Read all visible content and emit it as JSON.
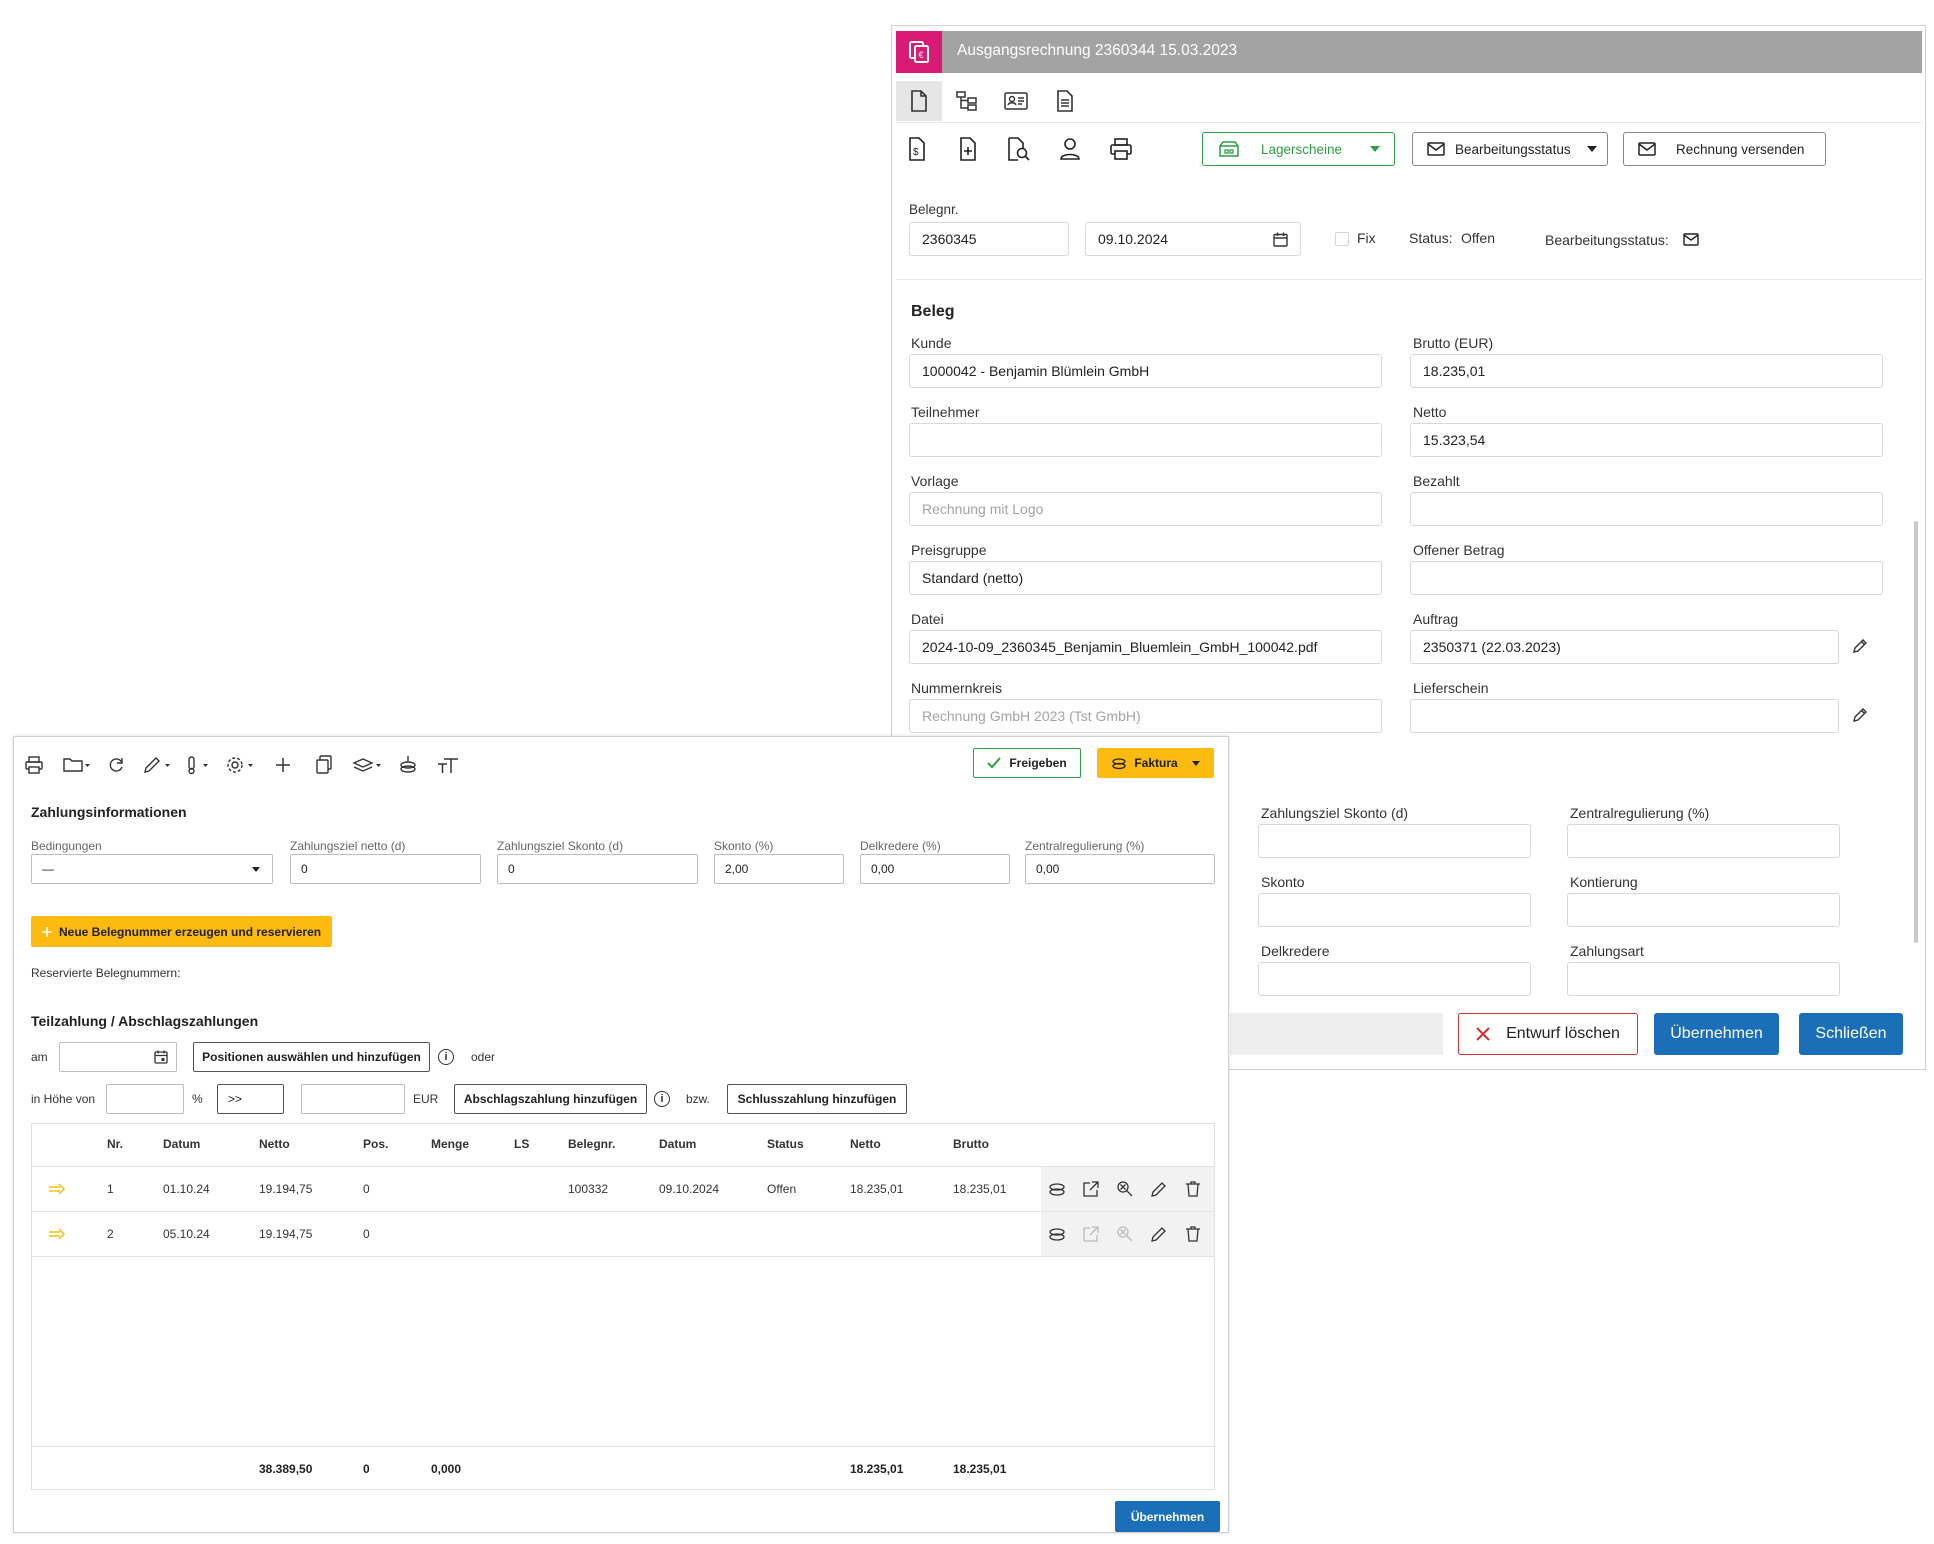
{
  "back_window": {
    "title": "Ausgangsrechnung 2360344 15.03.2023",
    "toolbar": {
      "lagerscheine_label": "Lagerscheine",
      "bearbeitungsstatus_label": "Bearbeitungsstatus",
      "send_label": "Rechnung versenden"
    },
    "header": {
      "belegnr_label": "Belegnr.",
      "belegnr_value": "2360345",
      "date_value": "09.10.2024",
      "fix_label": "Fix",
      "status_label": "Status:",
      "status_value": "Offen",
      "bearbeitungsstatus_label": "Bearbeitungsstatus:"
    },
    "beleg": {
      "section_title": "Beleg",
      "kunde_label": "Kunde",
      "kunde_value": "1000042 - Benjamin Blümlein GmbH",
      "teilnehmer_label": "Teilnehmer",
      "teilnehmer_value": "",
      "vorlage_label": "Vorlage",
      "vorlage_placeholder": "Rechnung mit Logo",
      "preisgruppe_label": "Preisgruppe",
      "preisgruppe_value": "Standard (netto)",
      "datei_label": "Datei",
      "datei_value": "2024-10-09_2360345_Benjamin_Bluemlein_GmbH_100042.pdf",
      "nummernkreis_label": "Nummernkreis",
      "nummernkreis_placeholder": "Rechnung GmbH 2023 (Tst GmbH)",
      "brutto_label": "Brutto (EUR)",
      "brutto_value": "18.235,01",
      "netto_label": "Netto",
      "netto_value": "15.323,54",
      "bezahlt_label": "Bezahlt",
      "bezahlt_value": "",
      "offener_label": "Offener Betrag",
      "offener_value": "",
      "auftrag_label": "Auftrag",
      "auftrag_value": "2350371 (22.03.2023)",
      "lieferschein_label": "Lieferschein",
      "lieferschein_value": ""
    },
    "payment": {
      "zahlungsziel_skonto_label": "Zahlungsziel Skonto (d)",
      "zentralregulierung_label": "Zentralregulierung (%)",
      "skonto_label": "Skonto",
      "kontierung_label": "Kontierung",
      "delkredere_label": "Delkredere",
      "zahlungsart_label": "Zahlungsart"
    },
    "footer": {
      "delete_label": "Entwurf löschen",
      "apply_label": "Übernehmen",
      "close_label": "Schließen"
    }
  },
  "front_window": {
    "freigeben_label": "Freigeben",
    "faktura_label": "Faktura",
    "section_title": "Zahlungsinformationen",
    "fields": {
      "bedingungen_label": "Bedingungen",
      "bedingungen_value": "—",
      "netto_label": "Zahlungsziel netto (d)",
      "netto_value": "0",
      "skonto_d_label": "Zahlungsziel Skonto (d)",
      "skonto_d_value": "0",
      "skonto_pct_label": "Skonto (%)",
      "skonto_pct_value": "2,00",
      "delkredere_label": "Delkredere (%)",
      "delkredere_value": "0,00",
      "zentral_label": "Zentralregulierung (%)",
      "zentral_value": "0,00"
    },
    "new_number_label": "Neue Belegnummer erzeugen und reservieren",
    "reserved_label": "Reservierte Belegnummern:",
    "teilzahlung_title": "Teilzahlung / Abschlagszahlungen",
    "am_label": "am",
    "positions_btn": "Positionen auswählen und hinzufügen",
    "oder_label": "oder",
    "hoehe_label": "in Höhe von",
    "percent_label": "%",
    "arrow_btn": ">>",
    "eur_label": "EUR",
    "abschlag_btn": "Abschlagszahlung hinzufügen",
    "bzw_label": "bzw.",
    "schluss_btn": "Schlusszahlung hinzufügen",
    "table": {
      "headers": [
        "Nr.",
        "Datum",
        "Netto",
        "Pos.",
        "Menge",
        "LS",
        "Belegnr.",
        "Datum",
        "Status",
        "Netto",
        "Brutto"
      ],
      "rows": [
        {
          "nr": "1",
          "datum": "01.10.24",
          "netto": "19.194,75",
          "pos": "0",
          "menge": "",
          "ls": "",
          "belegnr": "100332",
          "datum2": "09.10.2024",
          "status": "Offen",
          "netto2": "18.235,01",
          "brutto": "18.235,01"
        },
        {
          "nr": "2",
          "datum": "05.10.24",
          "netto": "19.194,75",
          "pos": "0",
          "menge": "",
          "ls": "",
          "belegnr": "",
          "datum2": "",
          "status": "",
          "netto2": "",
          "brutto": ""
        }
      ],
      "totals": {
        "netto": "38.389,50",
        "pos": "0",
        "menge": "0,000",
        "netto2": "18.235,01",
        "brutto": "18.235,01"
      }
    },
    "apply_label": "Übernehmen"
  },
  "colors": {
    "brand_magenta": "#d81b75",
    "titlebar_gray": "#a3a3a3",
    "primary_blue": "#1a6fb8",
    "warning_yellow": "#fdbb12",
    "success_green": "#2e9e44",
    "danger_red": "#d32f2f"
  }
}
